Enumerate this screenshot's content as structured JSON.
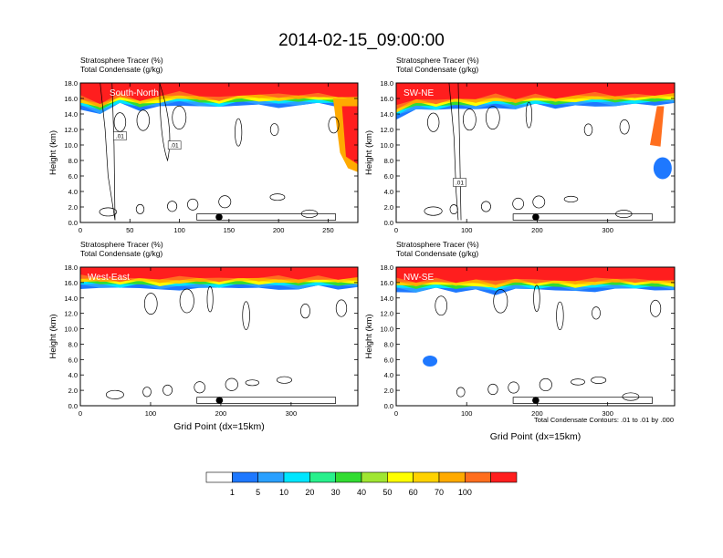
{
  "figure_title": "2014-02-15_09:00:00",
  "contour_note": "Total Condensate Contours: .01 to .01 by .000",
  "colors": {
    "levels": [
      "#ffffff",
      "#1e78ff",
      "#2aa0ff",
      "#00e6ff",
      "#28f08c",
      "#32dc32",
      "#a0e632",
      "#ffff00",
      "#ffd200",
      "#ffaa00",
      "#ff6e1e",
      "#ff1e1e"
    ],
    "dot": "#000000"
  },
  "colorbar": {
    "labels": [
      "1",
      "5",
      "10",
      "20",
      "30",
      "40",
      "50",
      "60",
      "70",
      "100"
    ]
  },
  "chart_data": [
    {
      "type": "heatmap",
      "name": "south-north",
      "title_line1": "Stratosphere Tracer   (%)",
      "title_line2": "Total Condensate   (g/kg)",
      "label": "South-North",
      "ylabel": "Height (km)",
      "xlabel": "",
      "xlim": [
        0,
        280
      ],
      "ylim": [
        0,
        18
      ],
      "xticks": [
        "0",
        "50",
        "100",
        "150",
        "200",
        "250"
      ],
      "yticks": [
        "0.0",
        "2.0",
        "4.0",
        "6.0",
        "8.0",
        "10.0",
        "12.0",
        "14.0",
        "16.0",
        "18.0"
      ],
      "marker_x": 140,
      "contour_labels": [
        ".01",
        ".01"
      ],
      "tracer_base_km": [
        14.8,
        14.0,
        15.2,
        14.5,
        14.9,
        15.3,
        15.0,
        14.7,
        15.2,
        15.1,
        15.0,
        15.1,
        15.2,
        15.0,
        14.8
      ]
    },
    {
      "type": "heatmap",
      "name": "sw-ne",
      "title_line1": "Stratosphere Tracer   (%)",
      "title_line2": "Total Condensate   (g/kg)",
      "label": "SW-NE",
      "ylabel": "Height (km)",
      "xlabel": "",
      "xlim": [
        0,
        395
      ],
      "ylim": [
        0,
        18
      ],
      "xticks": [
        "0",
        "100",
        "200",
        "300"
      ],
      "yticks": [
        "0.0",
        "2.0",
        "4.0",
        "6.0",
        "8.0",
        "10.0",
        "12.0",
        "14.0",
        "16.0",
        "18.0"
      ],
      "marker_x": 198,
      "contour_labels": [
        ".01"
      ],
      "tracer_base_km": [
        13.5,
        14.6,
        14.3,
        14.8,
        14.5,
        15.0,
        14.6,
        15.1,
        14.8,
        15.0,
        15.2,
        15.0,
        15.1,
        15.2,
        15.3
      ]
    },
    {
      "type": "heatmap",
      "name": "west-east",
      "title_line1": "Stratosphere Tracer   (%)",
      "title_line2": "Total Condensate   (g/kg)",
      "label": "West-East",
      "ylabel": "Height (km)",
      "xlabel": "Grid Point (dx=15km)",
      "xlim": [
        0,
        395
      ],
      "ylim": [
        0,
        18
      ],
      "xticks": [
        "0",
        "100",
        "200",
        "300"
      ],
      "yticks": [
        "0.0",
        "2.0",
        "4.0",
        "6.0",
        "8.0",
        "10.0",
        "12.0",
        "14.0",
        "16.0",
        "18.0"
      ],
      "marker_x": 198,
      "contour_labels": [],
      "tracer_base_km": [
        15.4,
        15.3,
        15.1,
        15.4,
        15.0,
        15.2,
        15.3,
        15.1,
        15.4,
        15.2,
        15.3,
        15.1,
        15.4,
        15.2,
        15.3
      ]
    },
    {
      "type": "heatmap",
      "name": "nw-se",
      "title_line1": "Stratosphere Tracer   (%)",
      "title_line2": "Total Condensate   (g/kg)",
      "label": "NW-SE",
      "ylabel": "Height (km)",
      "xlabel": "Grid Point (dx=15km)",
      "xlim": [
        0,
        395
      ],
      "ylim": [
        0,
        18
      ],
      "xticks": [
        "0",
        "100",
        "200",
        "300"
      ],
      "yticks": [
        "0.0",
        "2.0",
        "4.0",
        "6.0",
        "8.0",
        "10.0",
        "12.0",
        "14.0",
        "16.0",
        "18.0"
      ],
      "marker_x": 198,
      "contour_labels": [],
      "tracer_base_km": [
        15.0,
        14.7,
        15.1,
        14.8,
        15.0,
        14.6,
        15.2,
        14.9,
        15.1,
        14.8,
        15.0,
        15.2,
        15.0,
        15.1,
        14.9
      ]
    }
  ]
}
